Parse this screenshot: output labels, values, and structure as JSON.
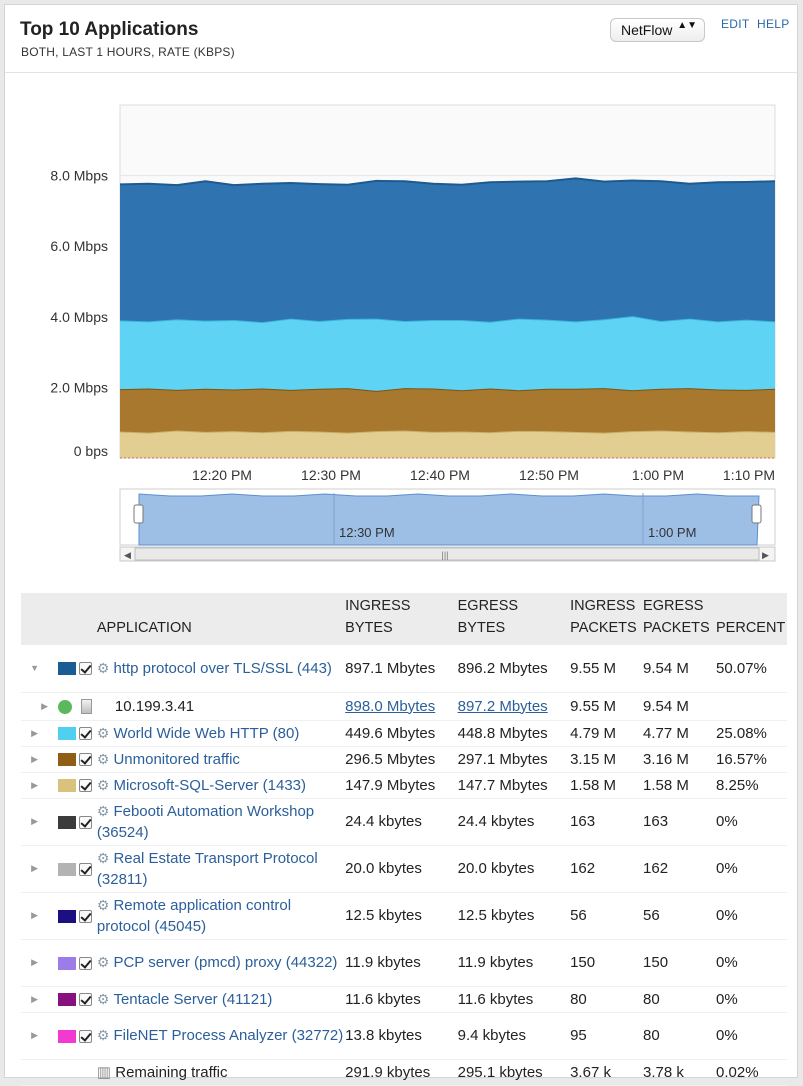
{
  "header": {
    "title": "Top 10 Applications",
    "subtitle": "BOTH, LAST 1 HOURS, RATE (KBPS)",
    "select_value": "NetFlow",
    "select_arrows": "▲▼",
    "edit_label": "EDIT",
    "help_label": "HELP"
  },
  "chart_data": {
    "type": "area",
    "stacked": true,
    "y_ticks": [
      "8.0 Mbps",
      "6.0 Mbps",
      "4.0 Mbps",
      "2.0 Mbps",
      "0 bps"
    ],
    "x_ticks": [
      "12:20 PM",
      "12:30 PM",
      "12:40 PM",
      "12:50 PM",
      "1:00 PM",
      "1:10 PM"
    ],
    "ylim": [
      0,
      10
    ],
    "series": [
      {
        "color": "#e3ce91",
        "values": [
          0.75,
          0.72,
          0.78,
          0.74,
          0.76,
          0.73,
          0.77,
          0.75,
          0.72,
          0.76,
          0.78,
          0.74,
          0.75,
          0.73,
          0.77,
          0.76,
          0.74,
          0.72,
          0.76,
          0.78,
          0.75,
          0.73,
          0.76,
          0.74
        ]
      },
      {
        "color": "#a8782e",
        "values": [
          1.2,
          1.25,
          1.15,
          1.22,
          1.18,
          1.24,
          1.16,
          1.21,
          1.26,
          1.14,
          1.2,
          1.23,
          1.17,
          1.24,
          1.15,
          1.2,
          1.22,
          1.26,
          1.16,
          1.18,
          1.23,
          1.21,
          1.17,
          1.22
        ]
      },
      {
        "color": "#5fd3f3",
        "values": [
          1.95,
          1.9,
          2.0,
          1.93,
          1.97,
          1.88,
          2.02,
          1.92,
          1.96,
          2.05,
          1.9,
          1.94,
          1.99,
          1.89,
          2.03,
          1.96,
          1.91,
          1.95,
          2.1,
          1.92,
          1.97,
          1.93,
          1.99,
          1.91
        ]
      },
      {
        "color": "#2f74b0",
        "values": [
          3.85,
          3.9,
          3.8,
          3.95,
          3.82,
          3.92,
          3.84,
          3.88,
          3.8,
          3.9,
          3.96,
          3.86,
          3.83,
          3.95,
          3.88,
          3.92,
          4.05,
          3.9,
          3.84,
          3.96,
          3.82,
          3.94,
          3.9,
          3.97
        ]
      }
    ],
    "overview_ticks": [
      "12:30 PM",
      "1:00 PM"
    ]
  },
  "table": {
    "headers": {
      "application": "APPLICATION",
      "ingress_bytes": [
        "INGRESS",
        "BYTES"
      ],
      "egress_bytes": [
        "EGRESS",
        "BYTES"
      ],
      "ingress_packets": [
        "INGRESS",
        "PACKETS"
      ],
      "egress_packets": [
        "EGRESS",
        "PACKETS"
      ],
      "percent": "PERCENT"
    },
    "rows": [
      {
        "kind": "app",
        "expanded": true,
        "color": "#1a5c93",
        "name": "http protocol over TLS/SSL (443)",
        "ingress_bytes": "897.1 Mbytes",
        "egress_bytes": "896.2 Mbytes",
        "ingress_packets": "9.55 M",
        "egress_packets": "9.54 M",
        "percent": "50.07%"
      },
      {
        "kind": "host",
        "name": "10.199.3.41",
        "ingress_bytes": "898.0 Mbytes",
        "egress_bytes": "897.2 Mbytes",
        "ingress_packets": "9.55 M",
        "egress_packets": "9.54 M",
        "percent": ""
      },
      {
        "kind": "app",
        "color": "#4fd0f1",
        "name": "World Wide Web HTTP (80)",
        "ingress_bytes": "449.6 Mbytes",
        "egress_bytes": "448.8 Mbytes",
        "ingress_packets": "4.79 M",
        "egress_packets": "4.77 M",
        "percent": "25.08%"
      },
      {
        "kind": "app",
        "color": "#8f5e14",
        "name": "Unmonitored traffic",
        "ingress_bytes": "296.5 Mbytes",
        "egress_bytes": "297.1 Mbytes",
        "ingress_packets": "3.15 M",
        "egress_packets": "3.16 M",
        "percent": "16.57%"
      },
      {
        "kind": "app",
        "color": "#d8c27c",
        "name": "Microsoft-SQL-Server (1433)",
        "ingress_bytes": "147.9 Mbytes",
        "egress_bytes": "147.7 Mbytes",
        "ingress_packets": "1.58 M",
        "egress_packets": "1.58 M",
        "percent": "8.25%"
      },
      {
        "kind": "app",
        "color": "#3b3b3b",
        "name": "Febooti Automation Workshop (36524)",
        "ingress_bytes": "24.4 kbytes",
        "egress_bytes": "24.4 kbytes",
        "ingress_packets": "163",
        "egress_packets": "163",
        "percent": "0%"
      },
      {
        "kind": "app",
        "color": "#b3b3b3",
        "name": "Real Estate Transport Protocol (32811)",
        "ingress_bytes": "20.0 kbytes",
        "egress_bytes": "20.0 kbytes",
        "ingress_packets": "162",
        "egress_packets": "162",
        "percent": "0%"
      },
      {
        "kind": "app",
        "color": "#1c0f82",
        "name": "Remote application control protocol (45045)",
        "ingress_bytes": "12.5 kbytes",
        "egress_bytes": "12.5 kbytes",
        "ingress_packets": "56",
        "egress_packets": "56",
        "percent": "0%"
      },
      {
        "kind": "app",
        "color": "#9b7ce8",
        "name": "PCP server (pmcd) proxy (44322)",
        "ingress_bytes": "11.9 kbytes",
        "egress_bytes": "11.9 kbytes",
        "ingress_packets": "150",
        "egress_packets": "150",
        "percent": "0%"
      },
      {
        "kind": "app",
        "color": "#86117f",
        "name": "Tentacle Server (41121)",
        "ingress_bytes": "11.6 kbytes",
        "egress_bytes": "11.6 kbytes",
        "ingress_packets": "80",
        "egress_packets": "80",
        "percent": "0%"
      },
      {
        "kind": "app",
        "color": "#f23ad0",
        "name": "FileNET Process Analyzer (32772)",
        "ingress_bytes": "13.8 kbytes",
        "egress_bytes": "9.4 kbytes",
        "ingress_packets": "95",
        "egress_packets": "80",
        "percent": "0%"
      },
      {
        "kind": "remaining",
        "name": "Remaining traffic",
        "ingress_bytes": "291.9 kbytes",
        "egress_bytes": "295.1 kbytes",
        "ingress_packets": "3.67 k",
        "egress_packets": "3.78 k",
        "percent": "0.02%"
      }
    ]
  }
}
